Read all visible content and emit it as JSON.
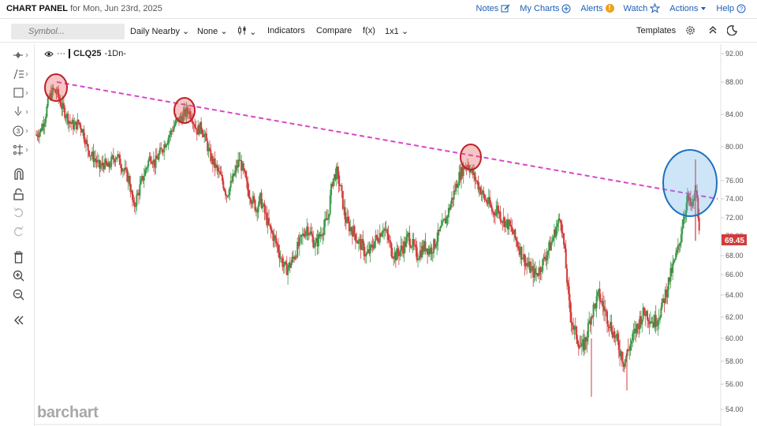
{
  "header": {
    "title": "CHART PANEL",
    "date_text": "for Mon, Jun 23rd, 2025",
    "links": {
      "notes": "Notes",
      "my_charts": "My Charts",
      "alerts": "Alerts",
      "watch": "Watch",
      "actions": "Actions",
      "help": "Help"
    },
    "alert_badge": "!"
  },
  "toolbar": {
    "symbol_placeholder": "Symbol...",
    "interval": "Daily Nearby",
    "aggregation": "None",
    "chart_type_icon": "candlestick-icon",
    "indicators": "Indicators",
    "compare": "Compare",
    "fx": "f(x)",
    "layout": "1x1",
    "templates": "Templates"
  },
  "chart_header": {
    "symbol": "CLQ25",
    "interval": "-1Dn-",
    "more": "···"
  },
  "brand": "barchart",
  "colors": {
    "up": "#3a9a4a",
    "down": "#d23b3b",
    "trendline": "#d946c8",
    "price_tag": "#d23b3b",
    "circle_red": "#c0202a",
    "circle_blue": "#1f6fc0"
  },
  "chart_data": {
    "type": "candlestick",
    "last_price": "69.45",
    "y_ticks": [
      "92.00",
      "88.00",
      "84.00",
      "80.00",
      "76.00",
      "74.00",
      "72.00",
      "70.00",
      "68.00",
      "66.00",
      "64.00",
      "62.00",
      "60.00",
      "58.00",
      "56.00",
      "54.00"
    ],
    "close_series": [
      81.5,
      82,
      83.5,
      86,
      87,
      86.5,
      85,
      84,
      83,
      82.5,
      83,
      82,
      80,
      79,
      78.5,
      77.5,
      78,
      77.5,
      78.5,
      79,
      78,
      77,
      76,
      73,
      74.5,
      76,
      77.5,
      79,
      78,
      79,
      80,
      81,
      82,
      83,
      83.5,
      84,
      84.5,
      83.5,
      82,
      82.5,
      81,
      79,
      78,
      77,
      76,
      74.5,
      75.5,
      77,
      78.5,
      77,
      75,
      74,
      73,
      74,
      72.5,
      71,
      70,
      69,
      67.5,
      66.5,
      67,
      68,
      69,
      70,
      71,
      70,
      69,
      70,
      71,
      72,
      76,
      77,
      75,
      72,
      71,
      70.5,
      69.5,
      69,
      68,
      68.5,
      69.5,
      70,
      71,
      70,
      68.5,
      68,
      68.5,
      69,
      70,
      69,
      68,
      68.5,
      69,
      68.5,
      69,
      70,
      71,
      72,
      73.5,
      75,
      76.5,
      77.5,
      78,
      77,
      76,
      75,
      74,
      73.5,
      72.5,
      73,
      72,
      71.5,
      71,
      70,
      69,
      68,
      67,
      66.5,
      66,
      66.5,
      67.5,
      68.5,
      69.5,
      71,
      72,
      68,
      63,
      61,
      60,
      59,
      60,
      62,
      63,
      64,
      63,
      62,
      61,
      60,
      59,
      58,
      59,
      60,
      61,
      62,
      62.5,
      62,
      61.5,
      62,
      63,
      64.5,
      66,
      67.5,
      69,
      72,
      74,
      73,
      75,
      70
    ],
    "annotations": [
      {
        "type": "trendline",
        "from": 88.0,
        "to": 74.0
      },
      {
        "type": "circle",
        "label": "peak-1",
        "color": "red"
      },
      {
        "type": "circle",
        "label": "peak-2",
        "color": "red"
      },
      {
        "type": "circle",
        "label": "peak-3",
        "color": "red"
      },
      {
        "type": "circle",
        "label": "breakout",
        "color": "blue"
      }
    ]
  }
}
